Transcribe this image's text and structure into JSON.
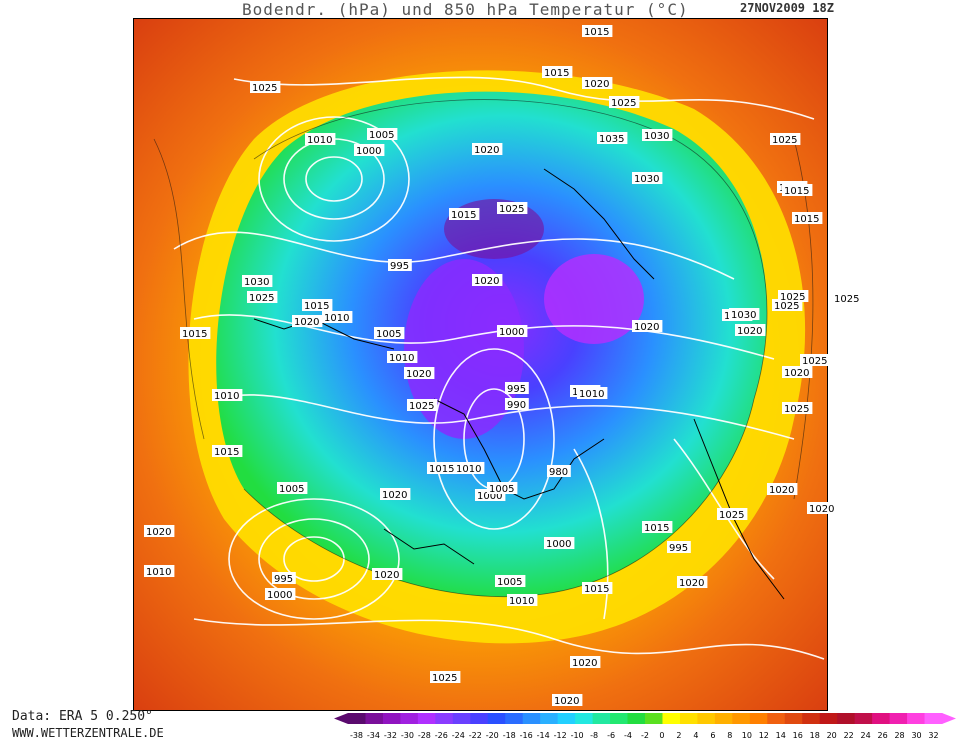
{
  "header": {
    "title": "Bodendr. (hPa) und 850 hPa Temperatur (°C)",
    "datestamp": "27NOV2009 18Z"
  },
  "footer": {
    "data_source": "Data: ERA 5 0.250°",
    "website": "WWW.WETTERZENTRALE.DE"
  },
  "legend": {
    "ticks": [
      "-38",
      "-34",
      "-32",
      "-30",
      "-28",
      "-26",
      "-24",
      "-22",
      "-20",
      "-18",
      "-16",
      "-14",
      "-12",
      "-10",
      "-8",
      "-6",
      "-4",
      "-2",
      "0",
      "2",
      "4",
      "6",
      "8",
      "10",
      "12",
      "14",
      "16",
      "18",
      "20",
      "22",
      "24",
      "26",
      "28",
      "30",
      "32"
    ],
    "colors": [
      "#5a0a6e",
      "#7a0f9a",
      "#9014c0",
      "#a020e0",
      "#b030ff",
      "#8a3cff",
      "#6a40ff",
      "#4a40ff",
      "#2a50ff",
      "#2a6cff",
      "#2a90ff",
      "#2ab0ff",
      "#22d0ff",
      "#22e8e0",
      "#22e8a0",
      "#22e870",
      "#22dd40",
      "#5ae020",
      "#ffff00",
      "#ffe000",
      "#ffc800",
      "#ffb000",
      "#ff9800",
      "#ff8000",
      "#f06010",
      "#e04a10",
      "#d03010",
      "#c01818",
      "#b0102a",
      "#c0104a",
      "#e01080",
      "#f020b0",
      "#ff40e0",
      "#ff60ff"
    ]
  },
  "map": {
    "pressure_labels": [
      {
        "text": "1015"
      },
      {
        "text": "1015"
      },
      {
        "text": "1025"
      },
      {
        "text": "1020"
      },
      {
        "text": "1025"
      },
      {
        "text": "1010"
      },
      {
        "text": "1005"
      },
      {
        "text": "1000"
      },
      {
        "text": "1020"
      },
      {
        "text": "1035"
      },
      {
        "text": "1030"
      },
      {
        "text": "1030"
      },
      {
        "text": "1025"
      },
      {
        "text": "1015"
      },
      {
        "text": "1025"
      },
      {
        "text": "995"
      },
      {
        "text": "1030"
      },
      {
        "text": "1020"
      },
      {
        "text": "1025"
      },
      {
        "text": "1015"
      },
      {
        "text": "1020"
      },
      {
        "text": "1010"
      },
      {
        "text": "1020"
      },
      {
        "text": "1030"
      },
      {
        "text": "1025"
      },
      {
        "text": "1000"
      },
      {
        "text": "1005"
      },
      {
        "text": "1010"
      },
      {
        "text": "1020"
      },
      {
        "text": "1025"
      },
      {
        "text": "995"
      },
      {
        "text": "990"
      },
      {
        "text": "1015"
      },
      {
        "text": "1010"
      },
      {
        "text": "1015"
      },
      {
        "text": "1010"
      },
      {
        "text": "1005"
      },
      {
        "text": "1020"
      },
      {
        "text": "980"
      },
      {
        "text": "1000"
      },
      {
        "text": "1005"
      },
      {
        "text": "1020"
      },
      {
        "text": "1015"
      },
      {
        "text": "1025"
      },
      {
        "text": "1020"
      },
      {
        "text": "995"
      },
      {
        "text": "1000"
      },
      {
        "text": "1005"
      },
      {
        "text": "1010"
      },
      {
        "text": "1015"
      },
      {
        "text": "1020"
      },
      {
        "text": "1015"
      },
      {
        "text": "995"
      },
      {
        "text": "1000"
      },
      {
        "text": "1010"
      },
      {
        "text": "1020"
      },
      {
        "text": "1020"
      },
      {
        "text": "1025"
      },
      {
        "text": "1020"
      },
      {
        "text": "1025"
      },
      {
        "text": "1015"
      },
      {
        "text": "1015"
      },
      {
        "text": "1020"
      },
      {
        "text": "1025"
      },
      {
        "text": "1020"
      },
      {
        "text": "1030"
      },
      {
        "text": "1025"
      },
      {
        "text": "1025"
      },
      {
        "text": "1020"
      },
      {
        "text": "1025"
      },
      {
        "text": "1010"
      },
      {
        "text": "1015"
      }
    ]
  }
}
